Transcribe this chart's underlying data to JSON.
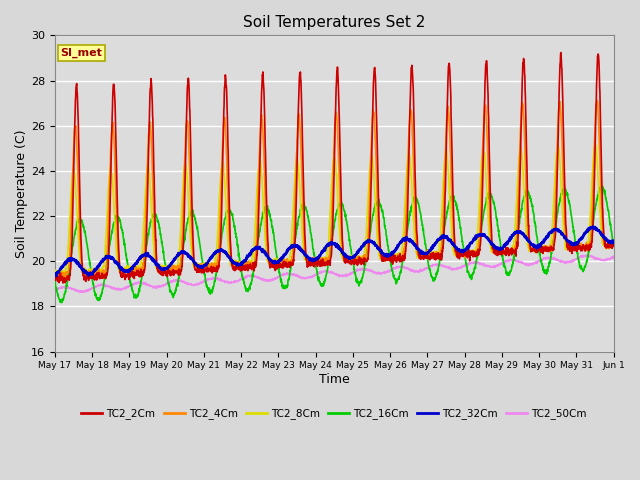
{
  "title": "Soil Temperatures Set 2",
  "xlabel": "Time",
  "ylabel": "Soil Temperature (C)",
  "ylim": [
    16,
    30
  ],
  "yticks": [
    16,
    18,
    20,
    22,
    24,
    26,
    28,
    30
  ],
  "series": {
    "TC2_2Cm": {
      "color": "#cc0000",
      "lw": 1.2
    },
    "TC2_4Cm": {
      "color": "#ff8800",
      "lw": 1.2
    },
    "TC2_8Cm": {
      "color": "#dddd00",
      "lw": 1.2
    },
    "TC2_16Cm": {
      "color": "#00cc00",
      "lw": 1.2
    },
    "TC2_32Cm": {
      "color": "#0000cc",
      "lw": 1.8
    },
    "TC2_50Cm": {
      "color": "#ee88ee",
      "lw": 1.2
    }
  },
  "annotation_text": "SI_met",
  "annotation_color": "#990000",
  "annotation_bg": "#ffff99",
  "annotation_edge": "#aaaa00",
  "fig_bg": "#d8d8d8",
  "plot_bg": "#dcdcdc",
  "n_days": 15,
  "start_day": 17,
  "xtick_labels": [
    "May 17",
    "May 18",
    "May 19",
    "May 20",
    "May 21",
    "May 22",
    "May 23",
    "May 24",
    "May 25",
    "May 26",
    "May 27",
    "May 28",
    "May 29",
    "May 30",
    "May 31",
    "Jun 1"
  ]
}
